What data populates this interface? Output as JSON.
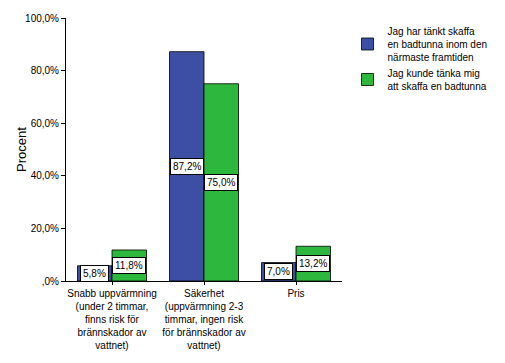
{
  "chart_data": {
    "type": "bar",
    "y_label": "Procent",
    "categories": [
      "Snabb uppvärmning (under 2 timmar, finns risk för brännskador av vattnet)",
      "Säkerhet (uppvärmning 2-3 timmar, ingen risk för brännskador av vattnet)",
      "Pris"
    ],
    "series": [
      {
        "name": "Jag har tänkt skaffa en badtunna inom den närmaste framtiden",
        "color": "#3d4fa3",
        "values": [
          5.8,
          87.2,
          7.0
        ],
        "value_labels": [
          "5,8%",
          "87,2%",
          "7,0%"
        ]
      },
      {
        "name": "Jag kunde tänka mig att skaffa en badtunna",
        "color": "#2db83d",
        "values": [
          11.8,
          75.0,
          13.2
        ],
        "value_labels": [
          "11,8%",
          "75,0%",
          "13,2%"
        ]
      }
    ],
    "ylim": [
      0,
      100
    ],
    "yticks": [
      {
        "value": 0,
        "label": ",0%"
      },
      {
        "value": 20,
        "label": "20,0%"
      },
      {
        "value": 40,
        "label": "40,0%"
      },
      {
        "value": 60,
        "label": "60,0%"
      },
      {
        "value": 80,
        "label": "80,0%"
      },
      {
        "value": 100,
        "label": "100,0%"
      }
    ],
    "grid": false,
    "legend": "top right",
    "data_labels": true
  }
}
